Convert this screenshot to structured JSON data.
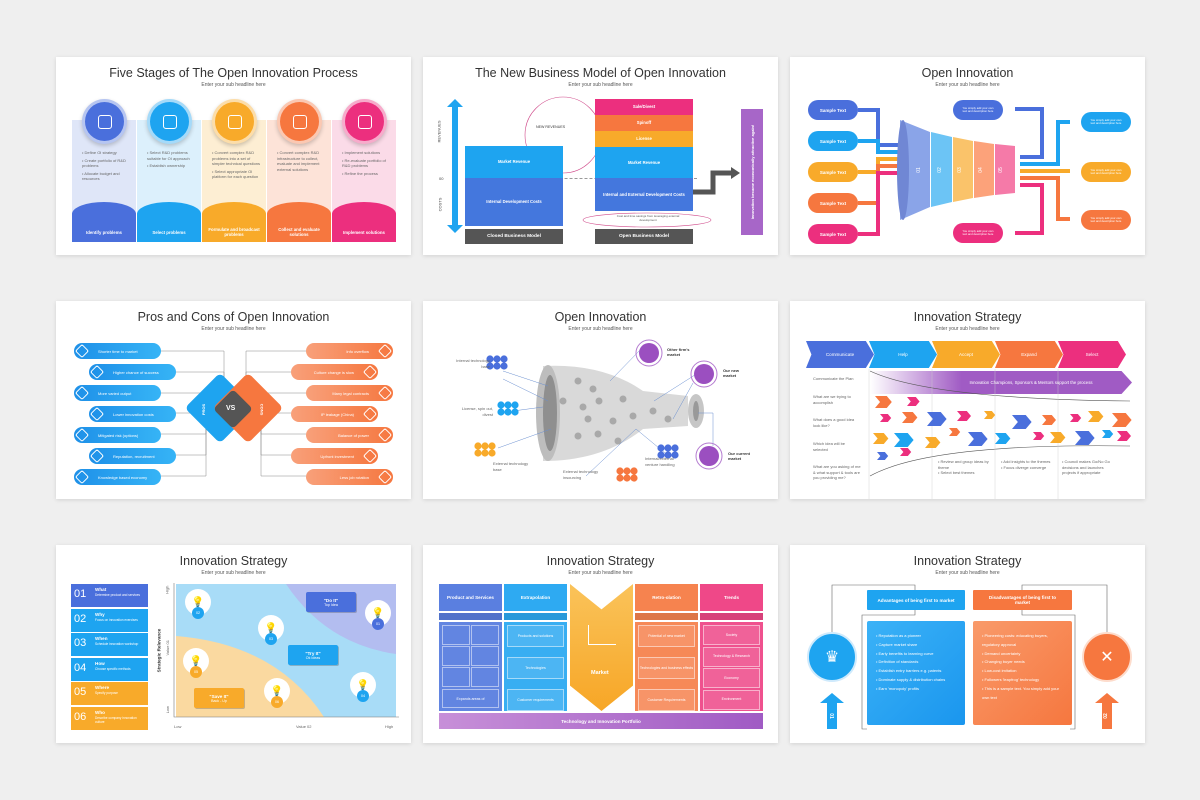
{
  "subtitle": "Enter your sub headline here",
  "colors": {
    "blue": "#4a6fdc",
    "cyan": "#1ea4f0",
    "yellow": "#f8aa2a",
    "orange": "#f6773f",
    "pink": "#ec2f7e",
    "purple": "#a05bc4",
    "dark": "#555555"
  },
  "slide1": {
    "title": "Five Stages of The Open Innovation Process",
    "stages": [
      {
        "label": "Identify problems",
        "icon": "document-check-icon",
        "bullets": [
          "Define OI strategy",
          "Create portfolio of R&D problems",
          "Allocate budget and resources"
        ]
      },
      {
        "label": "Select problems",
        "icon": "lightbulb-hand-icon",
        "bullets": [
          "Select R&D problems suitable for OI approach",
          "Establish ownership"
        ]
      },
      {
        "label": "Formulate and broadcast problems",
        "icon": "research-icon",
        "bullets": [
          "Convert complex R&D problems into a set of simpler technical questions",
          "Select appropriate OI platform for each question"
        ]
      },
      {
        "label": "Collect and evaluate solutions",
        "icon": "growth-chart-icon",
        "bullets": [
          "Convert complex R&D infrastructure to collect, evaluate and implement external solutions"
        ]
      },
      {
        "label": "Implement solutions",
        "icon": "idea-board-icon",
        "bullets": [
          "Implement solutions",
          "Re-evaluate portfolio of R&D problems",
          "Refine the process"
        ]
      }
    ]
  },
  "slide2": {
    "title": "The New Business Model of Open Innovation",
    "revenues": "REVENUES",
    "costs": "COSTS",
    "zero": "00",
    "new_revenues": "NEW REVENUES",
    "closed": {
      "market_revenue": "Market Revenue",
      "costs": "Internal Development Costs",
      "label": "Closed Business Model"
    },
    "open": {
      "sale": "Sale/Divest",
      "spinoff": "Spinoff",
      "license": "License",
      "market_revenue": "Market Revenue",
      "costs": "Internal and External Development Costs",
      "label": "Open Business Model"
    },
    "savings": "Cost and time savings from leveraging external development",
    "side_note": "Innovation became economically attractive again!"
  },
  "slide3": {
    "title": "Open Innovation",
    "inputs": [
      "Sample Text",
      "Sample Text",
      "Sample Text",
      "Sample Text",
      "Sample Text"
    ],
    "stages": [
      "01",
      "02",
      "03",
      "04",
      "05"
    ],
    "outputs": [
      "You simply add your own text and description here",
      "You simply add your own text and description here",
      "You simply add your own text and description here",
      "You simply add your own text and description here",
      "You simply add your own text and description here"
    ]
  },
  "slide4": {
    "title": "Pros and Cons of Open Innovation",
    "pros_label": "PROS",
    "cons_label": "CONS",
    "vs": "VS",
    "pros": [
      "Shorter time to market",
      "Higher chance of success",
      "More varied output",
      "Lower innovation costs",
      "Mitigated risk (options)",
      "Reputation, recruitment",
      "Knowledge based economy"
    ],
    "cons": [
      "Info overflow",
      "Culture change is slow",
      "Many legal contracts",
      "IP leakage (China)",
      "Balance of power",
      "Upfront investment",
      "Less job rotation"
    ]
  },
  "slide5": {
    "title": "Open Innovation",
    "inputs": [
      "Internal technology base",
      "License, spin out, divest",
      "External technology base",
      "External technology insourcing",
      "Internal/external venture handling"
    ],
    "markets": [
      "Other firm's market",
      "Our new market",
      "Our current market"
    ]
  },
  "slide6": {
    "title": "Innovation Strategy",
    "steps": [
      "Communicate",
      "Help",
      "Accept",
      "Expand",
      "Select"
    ],
    "banner": "Innovation Champions, Sponsors & Mentors support the process",
    "questions": [
      "Communicate the Plan",
      "What are we trying to accomplish",
      "What does a good idea look like?",
      "Which idea will be selected",
      "What are you asking of me & what support & tools are you providing me?"
    ],
    "notes": [
      [
        "Review and group ideas by theme",
        "Select best themes"
      ],
      [
        "Add insights to the themes",
        "Focus diverge converge"
      ],
      [
        "Council makes Go/No Go decisions and launches projects if appropriate"
      ]
    ]
  },
  "slide7": {
    "title": "Innovation Strategy",
    "list": [
      {
        "num": "01",
        "head": "What",
        "text": "Determine product and services"
      },
      {
        "num": "02",
        "head": "Why",
        "text": "Focus on innovation exercises"
      },
      {
        "num": "03",
        "head": "When",
        "text": "Schedule innovation workshop"
      },
      {
        "num": "04",
        "head": "How",
        "text": "Choose specific methods"
      },
      {
        "num": "05",
        "head": "Where",
        "text": "Specify purpose"
      },
      {
        "num": "06",
        "head": "Who",
        "text": "Describe company innovation culture"
      }
    ],
    "y_axis": "Strategic Relevance",
    "y_mid": "Value 01",
    "y_low": "Low",
    "y_high": "High",
    "x_mid": "Value 02",
    "x_low": "Low",
    "x_high": "High",
    "zones": [
      {
        "head": "\"Do It\"",
        "text": "Top Idea"
      },
      {
        "head": "\"Try It\"",
        "text": "Ok Ideas"
      },
      {
        "head": "\"Save It\"",
        "text": "Back - Up"
      }
    ],
    "ideas": [
      "01",
      "02",
      "03",
      "04",
      "05",
      "06"
    ]
  },
  "slide8": {
    "title": "Innovation Strategy",
    "columns": [
      {
        "head": "Product and Services",
        "items": [
          "Expands areas of"
        ]
      },
      {
        "head": "Extrapolation",
        "items": [
          "Products and solutions",
          "Technologies",
          "Customer requirements"
        ]
      },
      {
        "head": "Retro-olation",
        "items": [
          "Potential of new market",
          "Technologies and business effects",
          "Customer Requirements"
        ]
      },
      {
        "head": "Trends",
        "items": [
          "Society",
          "Technology & Research",
          "Economy",
          "Environment"
        ]
      }
    ],
    "market": "Market",
    "footer": "Technology and Innovation Portfolio"
  },
  "slide9": {
    "title": "Innovation Strategy",
    "adv_head": "Advantages of being first to market",
    "dis_head": "Disadvantages of being first to market",
    "adv": [
      "Reputation as a pioneer",
      "Capture market share",
      "Early benefits to learning curve",
      "Definition of standards",
      "Establish entry barriers e.g. patents",
      "Dominate supply & distribution chains",
      "Earn 'monopoly' profits"
    ],
    "dis": [
      "Pioneering costs: educating buyers, regulatory approval",
      "Demand uncertainty",
      "Changing buyer needs",
      "Low-cost imitation",
      "Followers 'leapfrog' technology",
      "This is a sample text. You simply add your own text"
    ],
    "num1": "01",
    "num2": "02"
  }
}
